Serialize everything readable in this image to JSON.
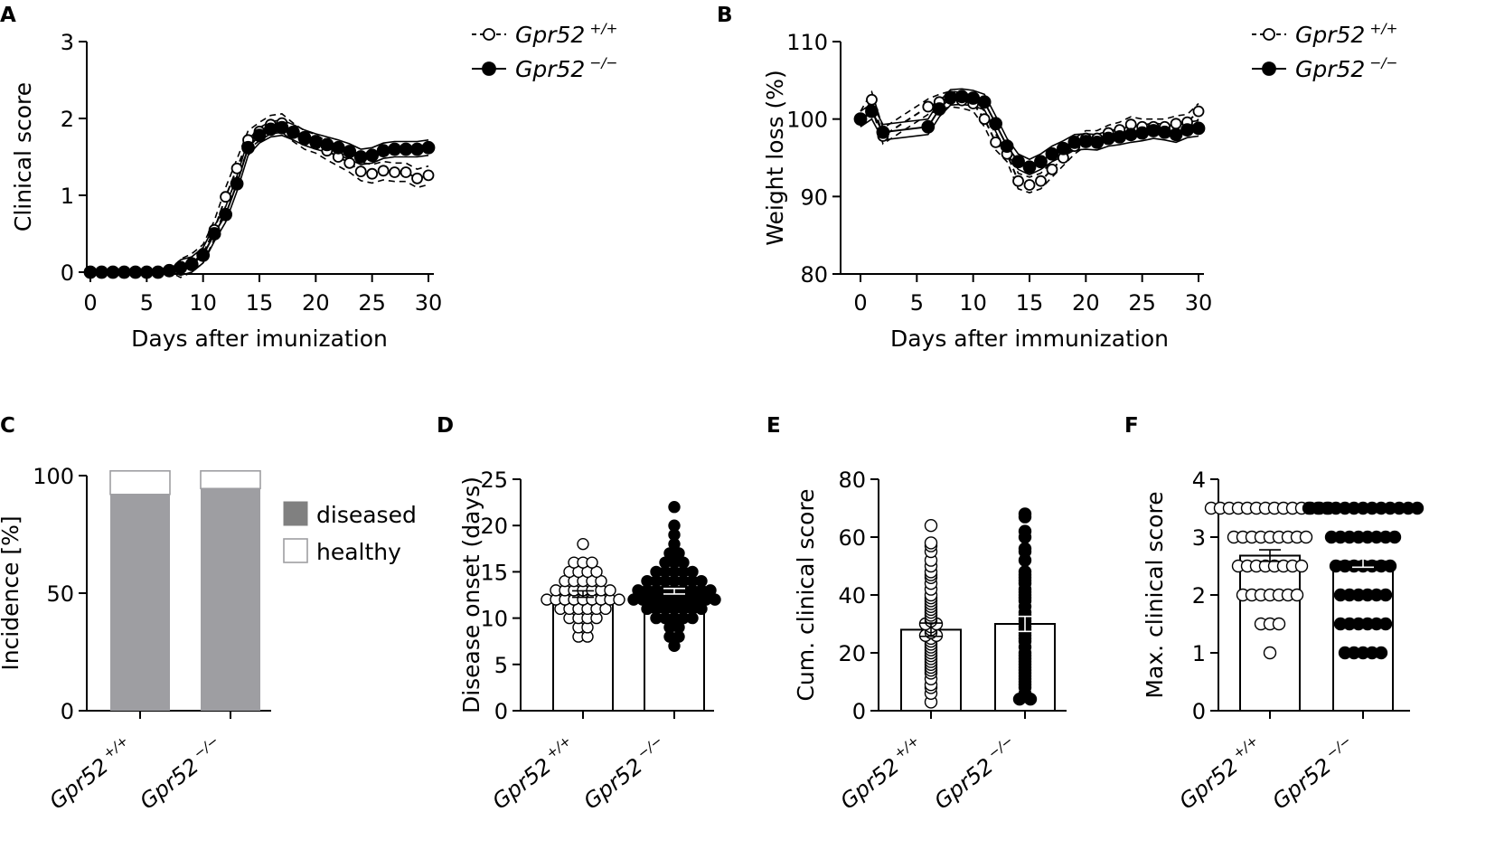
{
  "chart_data": [
    {
      "panel": "A",
      "type": "line",
      "xlabel": "Days after imunization",
      "ylabel": "Clinical score",
      "xlim": [
        0,
        30
      ],
      "ylim": [
        0,
        3
      ],
      "xticks": [
        0,
        5,
        10,
        15,
        20,
        25,
        30
      ],
      "yticks": [
        0,
        1,
        2,
        3
      ],
      "x": [
        0,
        1,
        2,
        3,
        4,
        5,
        6,
        7,
        8,
        9,
        10,
        11,
        12,
        13,
        14,
        15,
        16,
        17,
        18,
        19,
        20,
        21,
        22,
        23,
        24,
        25,
        26,
        27,
        28,
        29,
        30
      ],
      "series": [
        {
          "name": "Gpr52 +/+",
          "gene": "Gpr52",
          "sup": "+/+",
          "marker": "open",
          "values": [
            0,
            0,
            0,
            0,
            0,
            0,
            0,
            0.01,
            0.05,
            0.12,
            0.24,
            0.55,
            0.98,
            1.35,
            1.72,
            1.83,
            1.92,
            1.94,
            1.82,
            1.72,
            1.67,
            1.58,
            1.5,
            1.42,
            1.31,
            1.28,
            1.32,
            1.3,
            1.3,
            1.22,
            1.26
          ]
        },
        {
          "name": "Gpr52 −/−",
          "gene": "Gpr52",
          "sup": "−/−",
          "marker": "filled",
          "values": [
            0,
            0,
            0,
            0,
            0,
            0,
            0,
            0.02,
            0.06,
            0.1,
            0.22,
            0.5,
            0.75,
            1.15,
            1.62,
            1.78,
            1.86,
            1.88,
            1.82,
            1.75,
            1.7,
            1.66,
            1.62,
            1.57,
            1.5,
            1.52,
            1.58,
            1.6,
            1.6,
            1.6,
            1.62
          ]
        }
      ]
    },
    {
      "panel": "B",
      "type": "line",
      "xlabel": "Days after immunization",
      "ylabel": "Weight loss (%)",
      "xlim": [
        0,
        30
      ],
      "ylim": [
        80,
        110
      ],
      "xticks": [
        0,
        5,
        10,
        15,
        20,
        25,
        30
      ],
      "yticks": [
        80,
        90,
        100,
        110
      ],
      "x": [
        0,
        1,
        2,
        6,
        7,
        8,
        9,
        10,
        11,
        12,
        13,
        14,
        15,
        16,
        17,
        18,
        19,
        20,
        21,
        22,
        23,
        24,
        25,
        26,
        27,
        28,
        29,
        30
      ],
      "series": [
        {
          "name": "Gpr52 +/+",
          "gene": "Gpr52",
          "sup": "+/+",
          "marker": "open",
          "values": [
            100,
            102.5,
            97.8,
            101.6,
            102.2,
            102.6,
            102.4,
            102,
            100,
            97,
            95.5,
            92,
            91.5,
            92,
            93.5,
            95,
            96.5,
            97.5,
            97.5,
            98.2,
            98.6,
            99.3,
            99,
            99,
            99,
            99.4,
            99.6,
            101
          ]
        },
        {
          "name": "Gpr52 −/−",
          "gene": "Gpr52",
          "sup": "−/−",
          "marker": "filled",
          "values": [
            100,
            101,
            98.3,
            99,
            101.3,
            102.8,
            102.9,
            102.7,
            102.2,
            99.4,
            96.5,
            94.5,
            93.8,
            94.5,
            95.5,
            96.2,
            97,
            97.1,
            97,
            97.5,
            97.7,
            98,
            98.2,
            98.5,
            98.3,
            98,
            98.6,
            98.8
          ]
        }
      ]
    },
    {
      "panel": "C",
      "type": "bar",
      "ylabel": "Incidence [%]",
      "ylim": [
        0,
        100
      ],
      "yticks": [
        0,
        50,
        100
      ],
      "categories": [
        {
          "gene": "Gpr52",
          "sup": "+/+"
        },
        {
          "gene": "Gpr52",
          "sup": "−/−"
        }
      ],
      "series": [
        {
          "name": "diseased",
          "values": [
            92,
            94.5
          ]
        },
        {
          "name": "healthy",
          "values": [
            10,
            7.5
          ]
        }
      ],
      "legend": [
        "diseased",
        "healthy"
      ]
    },
    {
      "panel": "D",
      "type": "bar",
      "ylabel": "Disease onset (days)",
      "ylim": [
        0,
        25
      ],
      "yticks": [
        0,
        5,
        10,
        15,
        20,
        25
      ],
      "categories": [
        {
          "gene": "Gpr52",
          "sup": "+/+"
        },
        {
          "gene": "Gpr52",
          "sup": "−/−"
        }
      ],
      "means": [
        12.6,
        12.9
      ],
      "sem": [
        0.35,
        0.3
      ],
      "points": [
        [
          8,
          8,
          9,
          9,
          10,
          10,
          10,
          10,
          11,
          11,
          11,
          11,
          11,
          11,
          12,
          12,
          12,
          12,
          12,
          12,
          12,
          12,
          12,
          13,
          13,
          13,
          13,
          13,
          13,
          13,
          14,
          14,
          14,
          14,
          14,
          15,
          15,
          15,
          15,
          16,
          16,
          16,
          18
        ],
        [
          7,
          8,
          8,
          9,
          9,
          10,
          10,
          10,
          10,
          10,
          11,
          11,
          11,
          11,
          11,
          11,
          11,
          12,
          12,
          12,
          12,
          12,
          12,
          12,
          12,
          12,
          12,
          13,
          13,
          13,
          13,
          13,
          13,
          13,
          13,
          13,
          14,
          14,
          14,
          14,
          14,
          14,
          14,
          15,
          15,
          15,
          15,
          15,
          16,
          16,
          16,
          17,
          17,
          18,
          19,
          20,
          22
        ]
      ]
    },
    {
      "panel": "E",
      "type": "bar",
      "ylabel": "Cum. clinical score",
      "ylim": [
        0,
        80
      ],
      "yticks": [
        0,
        20,
        40,
        60,
        80
      ],
      "categories": [
        {
          "gene": "Gpr52",
          "sup": "+/+"
        },
        {
          "gene": "Gpr52",
          "sup": "−/−"
        }
      ],
      "means": [
        28,
        30
      ],
      "sem": [
        2.3,
        2.6
      ],
      "points": [
        [
          3,
          6,
          8,
          9,
          11,
          13,
          14,
          15,
          16,
          17,
          18,
          19,
          20,
          21,
          22,
          23,
          24,
          25,
          26,
          26,
          27,
          28,
          29,
          30,
          30,
          31,
          32,
          33,
          34,
          35,
          36,
          37,
          38,
          39,
          40,
          42,
          44,
          46,
          47,
          48,
          50,
          52,
          55,
          57,
          58,
          64
        ],
        [
          4,
          4,
          5,
          6,
          8,
          9,
          10,
          11,
          12,
          13,
          14,
          15,
          16,
          17,
          18,
          19,
          20,
          22,
          24,
          25,
          26,
          27,
          28,
          29,
          30,
          31,
          32,
          33,
          34,
          36,
          38,
          39,
          40,
          41,
          42,
          44,
          45,
          46,
          47,
          48,
          52,
          55,
          56,
          60,
          62,
          67,
          68
        ]
      ]
    },
    {
      "panel": "F",
      "type": "bar",
      "ylabel": "Max. clinical score",
      "ylim": [
        0,
        4
      ],
      "yticks": [
        0,
        1,
        2,
        3,
        4
      ],
      "categories": [
        {
          "gene": "Gpr52",
          "sup": "+/+"
        },
        {
          "gene": "Gpr52",
          "sup": "−/−"
        }
      ],
      "means": [
        2.68,
        2.58
      ],
      "sem": [
        0.1,
        0.1
      ],
      "points": [
        [
          1,
          1.5,
          1.5,
          1.5,
          2,
          2,
          2,
          2,
          2,
          2,
          2,
          2.5,
          2.5,
          2.5,
          2.5,
          2.5,
          2.5,
          2.5,
          2.5,
          3,
          3,
          3,
          3,
          3,
          3,
          3,
          3,
          3,
          3.5,
          3.5,
          3.5,
          3.5,
          3.5,
          3.5,
          3.5,
          3.5,
          3.5,
          3.5,
          3.5,
          3.5,
          3.5,
          3.5
        ],
        [
          1,
          1,
          1,
          1,
          1,
          1.5,
          1.5,
          1.5,
          1.5,
          1.5,
          1.5,
          2,
          2,
          2,
          2,
          2,
          2,
          2.5,
          2.5,
          2.5,
          2.5,
          2.5,
          2.5,
          2.5,
          3,
          3,
          3,
          3,
          3,
          3,
          3,
          3,
          3.5,
          3.5,
          3.5,
          3.5,
          3.5,
          3.5,
          3.5,
          3.5,
          3.5,
          3.5,
          3.5,
          3.5,
          3.5
        ]
      ]
    }
  ],
  "panel_letters": [
    "A",
    "B",
    "C",
    "D",
    "E",
    "F"
  ]
}
